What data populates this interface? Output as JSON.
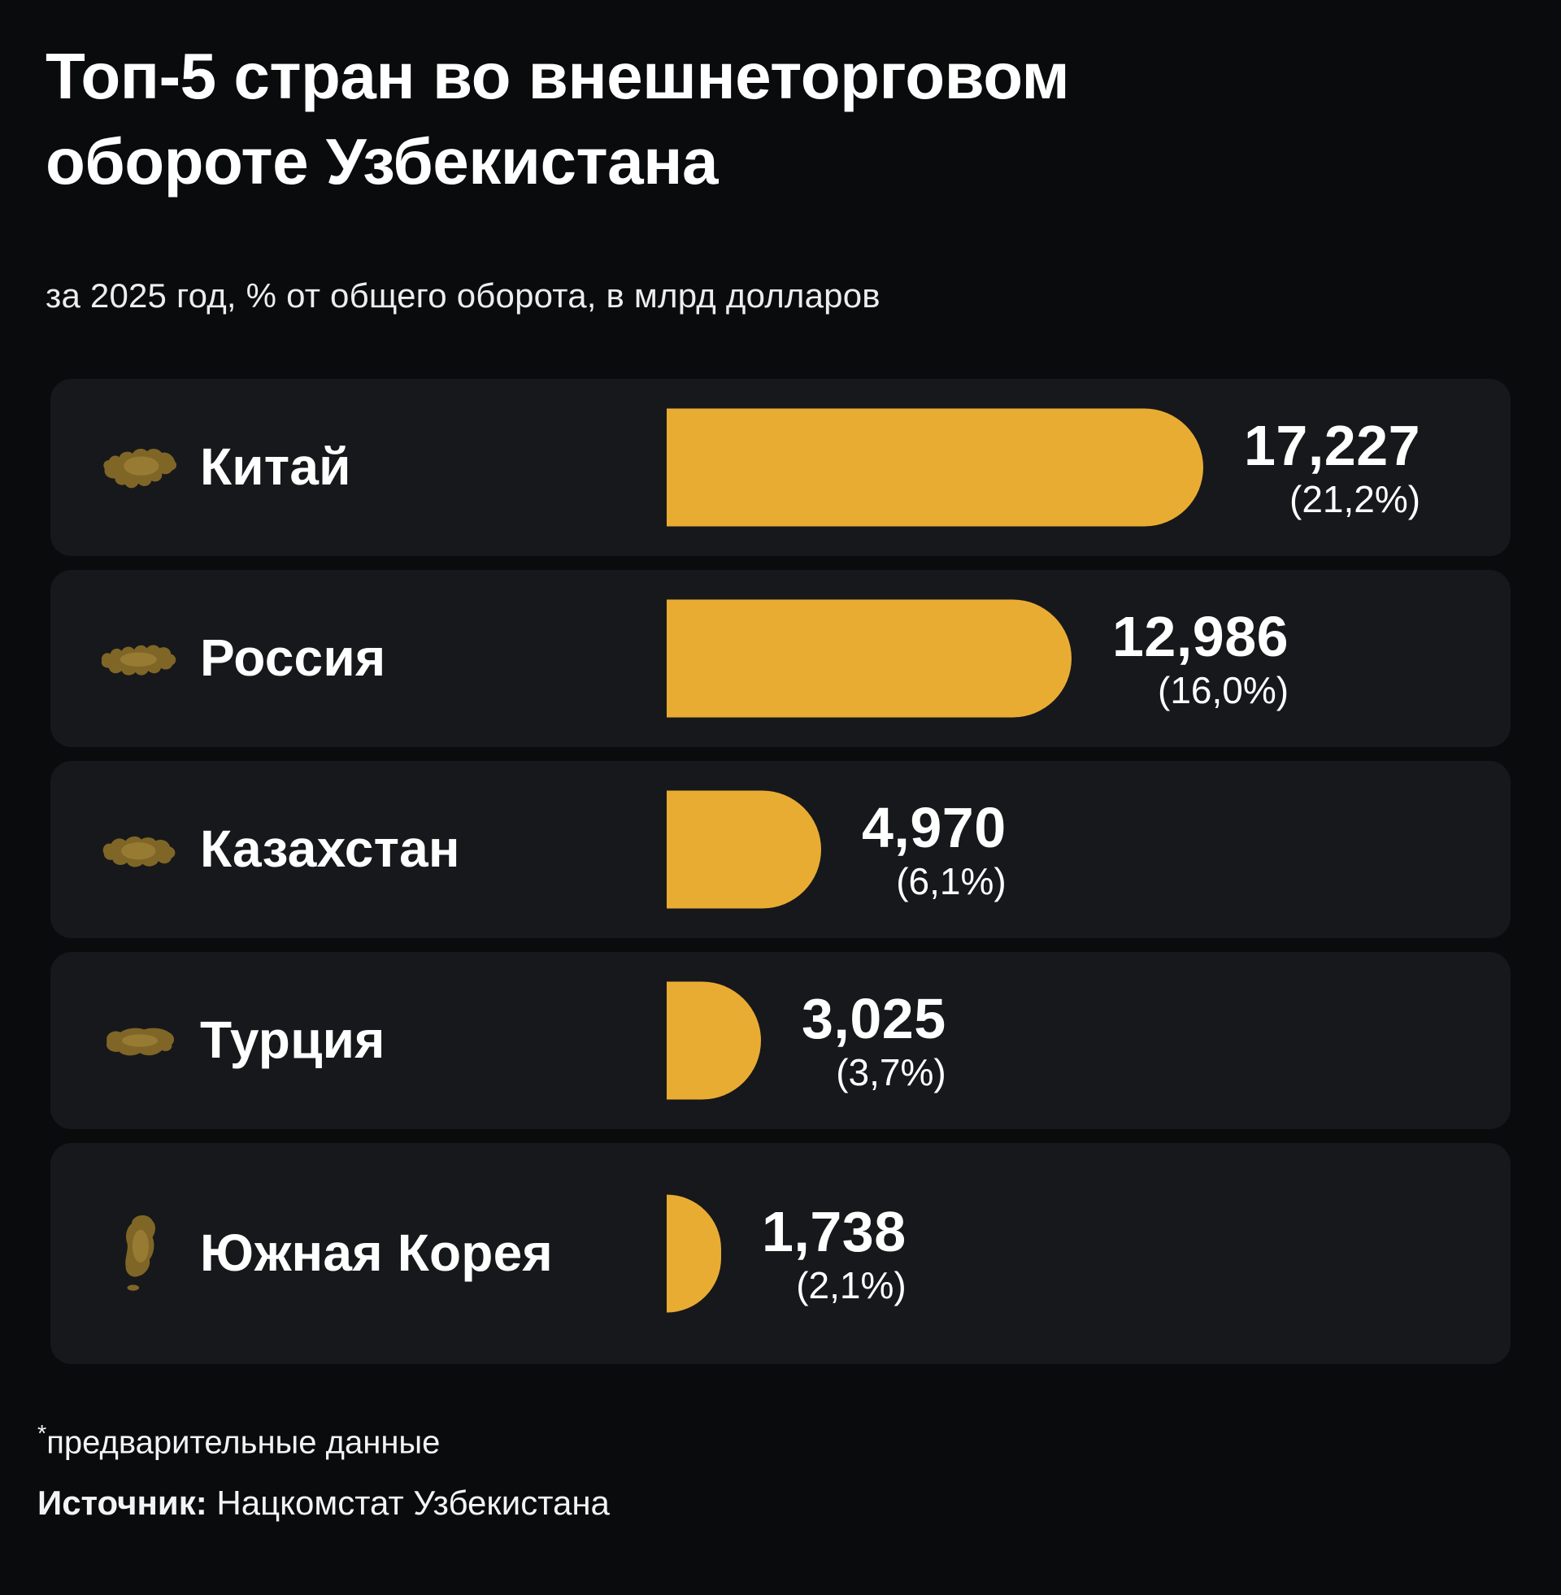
{
  "header": {
    "title_line1": "Топ-5 стран во внешнеторговом",
    "title_line2": "обороте Узбекистана",
    "subtitle": "за 2025 год, % от общего оборота, в млрд долларов"
  },
  "chart_data": {
    "type": "bar",
    "orientation": "horizontal",
    "title": "Топ-5 стран во внешнеторговом обороте Узбекистана",
    "subtitle": "за 2025 год, % от общего оборота, в млрд долларов",
    "unit": "млрд долларов",
    "categories": [
      "Китай",
      "Россия",
      "Казахстан",
      "Турция",
      "Южная Корея"
    ],
    "values": [
      17227,
      12986,
      4970,
      3025,
      1738
    ],
    "value_labels": [
      "17,227",
      "12,986",
      "4,970",
      "3,025",
      "1,738"
    ],
    "percent_of_total": [
      21.2,
      16.0,
      6.1,
      3.7,
      2.1
    ],
    "percent_labels": [
      "(21,2%)",
      "(16,0%)",
      "(6,1%)",
      "(3,7%)",
      "(2,1%)"
    ],
    "icon_names": [
      "china-map-icon",
      "russia-map-icon",
      "kazakhstan-map-icon",
      "turkey-map-icon",
      "south-korea-map-icon"
    ],
    "legend": "none",
    "grid": "off"
  },
  "footer": {
    "note_mark": "*",
    "note_text": "предварительные данные",
    "source_label": "Источник:",
    "source_value": "Нацкомстат Узбекистана"
  },
  "colors": {
    "bar": "#E9AC33",
    "page_bg": "#0A0B0D",
    "card_bg": "#17181B",
    "text": "#FFFFFF",
    "icon_gold": "#7F6627",
    "icon_gold_light": "#A8893C"
  }
}
